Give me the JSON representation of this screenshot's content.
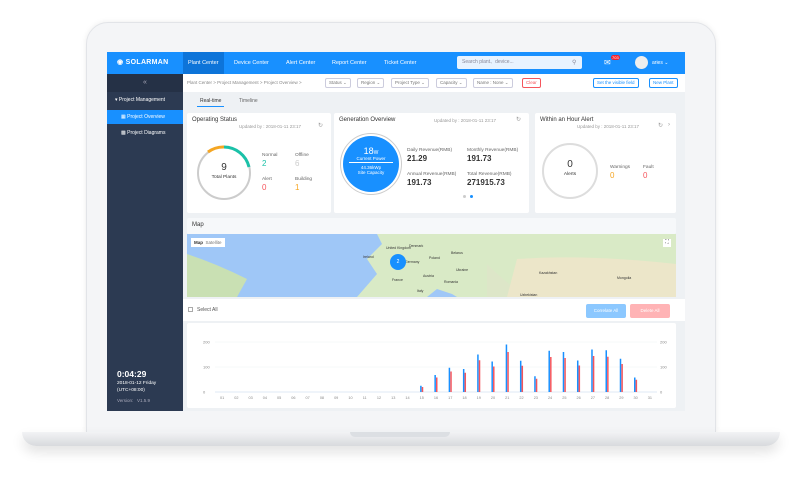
{
  "header": {
    "logo": "SOLARMAN",
    "nav": [
      "Plant Center",
      "Device Center",
      "Alert Center",
      "Report Center",
      "Ticket Center"
    ],
    "search_placeholder": "Search plant、device...",
    "notification_count": "703",
    "user": "aries ⌄"
  },
  "sidebar": {
    "collapse": "«",
    "items": [
      "Project Management",
      "Project Overview",
      "Project Diagrams"
    ],
    "clock": "0:04:29",
    "date": "2018-01-12 Friday",
    "timezone": "(UTC+08:00)",
    "version_label": "Version:",
    "version": "V1.5.9"
  },
  "toolbar": {
    "breadcrumb": "Plant Center > Project Management > Project Overview >",
    "filters": [
      "Status ⌄",
      "Region ⌄",
      "Project Type ⌄",
      "Capacity ⌄",
      "Name : None ⌄"
    ],
    "clear": "Clear",
    "visible_field": "Set the visible field",
    "new_plant": "New Plant"
  },
  "tabs": [
    "Real-time",
    "Timeline"
  ],
  "operating": {
    "title": "Operating Status",
    "updated": "Updated by : 2018-01-11 23:17",
    "total": "9",
    "total_label": "Total Plants",
    "normal_label": "Normal",
    "normal": "2",
    "offline_label": "Offline",
    "offline": "6",
    "alert_label": "Alert",
    "alert": "0",
    "building_label": "Building",
    "building": "1"
  },
  "generation": {
    "title": "Generation Overview",
    "updated": "Updated by : 2018-01-11 23:17",
    "power": "18",
    "power_unit": "W",
    "power_label": "Current Power",
    "capacity": "44.36kWp",
    "capacity_label": "Site Capacity",
    "daily_label": "Daily Revenue(RMB)",
    "daily": "21.29",
    "monthly_label": "Monthly Revenue(RMB)",
    "monthly": "191.73",
    "annual_label": "Annual Revenue(RMB)",
    "annual": "191.73",
    "total_label": "Total Revenue(RMB)",
    "total": "271915.73"
  },
  "alerts": {
    "title": "Within an Hour Alert",
    "updated": "Updated by : 2018-01-11 23:17",
    "count": "0",
    "count_label": "Alerts",
    "warnings_label": "Warnings",
    "warnings": "0",
    "fault_label": "Fault",
    "fault": "0"
  },
  "map": {
    "title": "Map",
    "tabs": [
      "Map",
      "Satellite"
    ],
    "cluster": "2",
    "labels": [
      "United Kingdom",
      "Ireland",
      "Denmark",
      "Germany",
      "Poland",
      "Belarus",
      "Ukraine",
      "France",
      "Austria",
      "Romania",
      "Italy",
      "Kazakhstan",
      "Mongolia",
      "Uzbekistan"
    ]
  },
  "list": {
    "select_all": "Select All",
    "correlate": "Correlate All",
    "delete": "Delete All"
  },
  "colors": {
    "primary": "#1890ff",
    "red": "#f5555c",
    "teal": "#1bc1a8",
    "orange": "#f5a623"
  },
  "chart_data": {
    "type": "bar",
    "categories": [
      "01",
      "02",
      "03",
      "04",
      "05",
      "06",
      "07",
      "08",
      "09",
      "10",
      "11",
      "12",
      "13",
      "14",
      "15",
      "16",
      "17",
      "18",
      "19",
      "20",
      "21",
      "22",
      "23",
      "24",
      "25",
      "26",
      "27",
      "28",
      "29",
      "30",
      "31"
    ],
    "series": [
      {
        "name": "blue",
        "values": [
          0,
          0,
          0,
          0,
          0,
          0,
          0,
          0,
          0,
          0,
          0,
          0,
          0,
          0,
          25,
          68,
          97,
          92,
          150,
          122,
          190,
          125,
          63,
          165,
          160,
          126,
          170,
          167,
          133,
          58,
          0
        ]
      },
      {
        "name": "red",
        "values": [
          0,
          0,
          0,
          0,
          0,
          0,
          0,
          0,
          0,
          0,
          0,
          0,
          0,
          0,
          20,
          58,
          82,
          77,
          127,
          102,
          160,
          105,
          53,
          140,
          136,
          106,
          144,
          141,
          112,
          49,
          0
        ]
      }
    ],
    "yticks": [
      "0",
      "100",
      "200"
    ],
    "ylim": [
      0,
      200
    ]
  }
}
